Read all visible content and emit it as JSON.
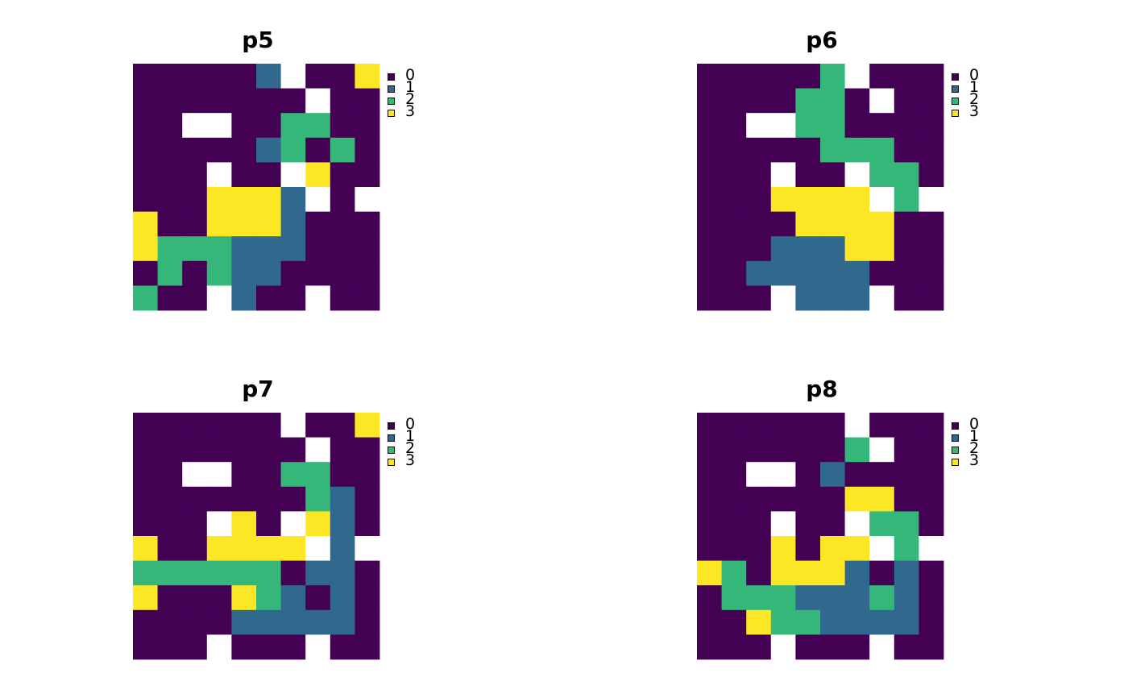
{
  "palette": {
    "0": "#440154",
    "1": "#31688E",
    "2": "#35B779",
    "3": "#FDE725",
    "na": "#FFFFFF"
  },
  "chart_data": [
    {
      "type": "heatmap",
      "title": "p5",
      "legend": {
        "placement": "right",
        "labels": [
          "0",
          "1",
          "2",
          "3"
        ]
      },
      "grid": [
        [
          0,
          0,
          0,
          0,
          0,
          1,
          null,
          0,
          0,
          3
        ],
        [
          0,
          0,
          0,
          0,
          0,
          0,
          0,
          null,
          0,
          0
        ],
        [
          0,
          0,
          null,
          null,
          0,
          0,
          2,
          2,
          0,
          0
        ],
        [
          0,
          0,
          0,
          0,
          0,
          1,
          2,
          0,
          2,
          0
        ],
        [
          0,
          0,
          0,
          null,
          0,
          0,
          null,
          3,
          0,
          0
        ],
        [
          0,
          0,
          0,
          3,
          3,
          3,
          1,
          null,
          0,
          null
        ],
        [
          3,
          0,
          0,
          3,
          3,
          3,
          1,
          0,
          0,
          0
        ],
        [
          3,
          2,
          2,
          2,
          1,
          1,
          1,
          0,
          0,
          0
        ],
        [
          0,
          2,
          0,
          2,
          1,
          1,
          0,
          0,
          0,
          0
        ],
        [
          2,
          0,
          0,
          null,
          1,
          0,
          0,
          null,
          0,
          0
        ]
      ]
    },
    {
      "type": "heatmap",
      "title": "p6",
      "legend": {
        "placement": "right",
        "labels": [
          "0",
          "1",
          "2",
          "3"
        ]
      },
      "grid": [
        [
          0,
          0,
          0,
          0,
          0,
          2,
          null,
          0,
          0,
          0
        ],
        [
          0,
          0,
          0,
          0,
          2,
          2,
          0,
          null,
          0,
          0
        ],
        [
          0,
          0,
          null,
          null,
          2,
          2,
          0,
          0,
          0,
          0
        ],
        [
          0,
          0,
          0,
          0,
          0,
          2,
          2,
          2,
          0,
          0
        ],
        [
          0,
          0,
          0,
          null,
          0,
          0,
          null,
          2,
          2,
          0
        ],
        [
          0,
          0,
          0,
          3,
          3,
          3,
          3,
          null,
          2,
          null
        ],
        [
          0,
          0,
          0,
          0,
          3,
          3,
          3,
          3,
          0,
          0
        ],
        [
          0,
          0,
          0,
          1,
          1,
          1,
          3,
          3,
          0,
          0
        ],
        [
          0,
          0,
          1,
          1,
          1,
          1,
          1,
          0,
          0,
          0
        ],
        [
          0,
          0,
          0,
          null,
          1,
          1,
          1,
          null,
          0,
          0
        ]
      ]
    },
    {
      "type": "heatmap",
      "title": "p7",
      "legend": {
        "placement": "right",
        "labels": [
          "0",
          "1",
          "2",
          "3"
        ]
      },
      "grid": [
        [
          0,
          0,
          0,
          0,
          0,
          0,
          null,
          0,
          0,
          3
        ],
        [
          0,
          0,
          0,
          0,
          0,
          0,
          0,
          null,
          0,
          0
        ],
        [
          0,
          0,
          null,
          null,
          0,
          0,
          2,
          2,
          0,
          0
        ],
        [
          0,
          0,
          0,
          0,
          0,
          0,
          0,
          2,
          1,
          0
        ],
        [
          0,
          0,
          0,
          null,
          3,
          0,
          null,
          3,
          1,
          0
        ],
        [
          3,
          0,
          0,
          3,
          3,
          3,
          3,
          null,
          1,
          null
        ],
        [
          2,
          2,
          2,
          2,
          2,
          2,
          0,
          1,
          1,
          0
        ],
        [
          3,
          0,
          0,
          0,
          3,
          2,
          1,
          0,
          1,
          0
        ],
        [
          0,
          0,
          0,
          0,
          1,
          1,
          1,
          1,
          1,
          0
        ],
        [
          0,
          0,
          0,
          null,
          0,
          0,
          0,
          null,
          0,
          0
        ]
      ]
    },
    {
      "type": "heatmap",
      "title": "p8",
      "legend": {
        "placement": "right",
        "labels": [
          "0",
          "1",
          "2",
          "3"
        ]
      },
      "grid": [
        [
          0,
          0,
          0,
          0,
          0,
          0,
          null,
          0,
          0,
          0
        ],
        [
          0,
          0,
          0,
          0,
          0,
          0,
          2,
          null,
          0,
          0
        ],
        [
          0,
          0,
          null,
          null,
          0,
          1,
          0,
          0,
          0,
          0
        ],
        [
          0,
          0,
          0,
          0,
          0,
          0,
          3,
          3,
          0,
          0
        ],
        [
          0,
          0,
          0,
          null,
          0,
          0,
          null,
          2,
          2,
          0
        ],
        [
          0,
          0,
          0,
          3,
          0,
          3,
          3,
          null,
          2,
          null
        ],
        [
          3,
          2,
          0,
          3,
          3,
          3,
          1,
          0,
          1,
          0
        ],
        [
          0,
          2,
          2,
          2,
          1,
          1,
          1,
          2,
          1,
          0
        ],
        [
          0,
          0,
          3,
          2,
          2,
          1,
          1,
          1,
          1,
          0
        ],
        [
          0,
          0,
          0,
          null,
          0,
          0,
          0,
          null,
          0,
          0
        ]
      ]
    }
  ]
}
